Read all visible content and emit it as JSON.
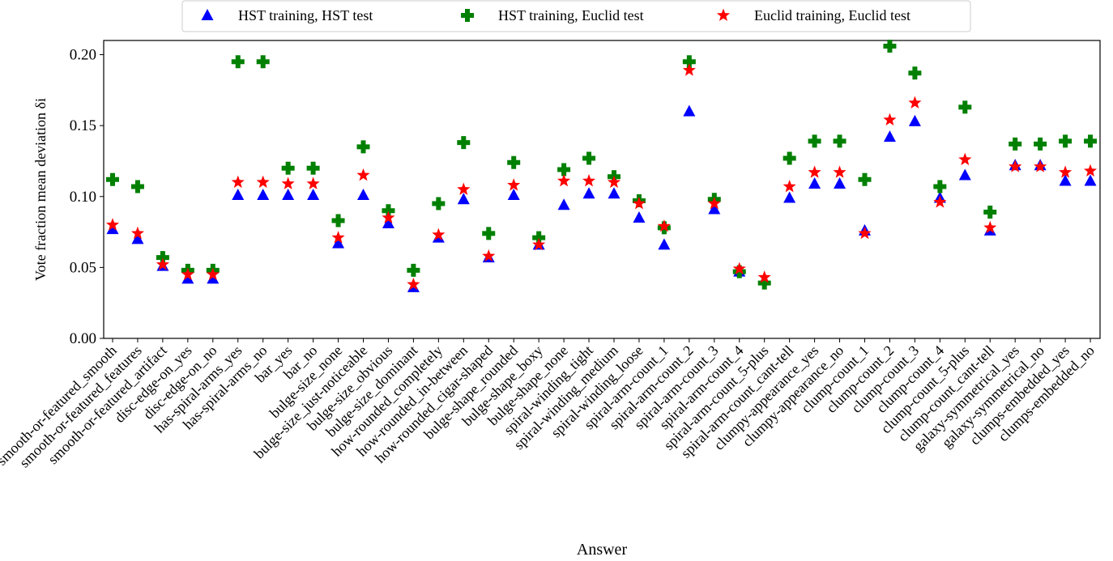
{
  "chart_data": {
    "type": "category-scatter",
    "xlabel": "Answer",
    "ylabel": "Vote fraction mean deviation δi",
    "categories": [
      "smooth-or-featured_smooth",
      "smooth-or-featured_features",
      "smooth-or-featured_artifact",
      "disc-edge-on_yes",
      "disc-edge-on_no",
      "has-spiral-arms_yes",
      "has-spiral-arms_no",
      "bar_yes",
      "bar_no",
      "bulge-size_none",
      "bulge-size_just-noticeable",
      "bulge-size_obvious",
      "bulge-size_dominant",
      "how-rounded_completely",
      "how-rounded_in-between",
      "how-rounded_cigar-shaped",
      "bulge-shape_rounded",
      "bulge-shape_boxy",
      "bulge-shape_none",
      "spiral-winding_tight",
      "spiral-winding_medium",
      "spiral-winding_loose",
      "spiral-arm-count_1",
      "spiral-arm-count_2",
      "spiral-arm-count_3",
      "spiral-arm-count_4",
      "spiral-arm-count_5-plus",
      "spiral-arm-count_cant-tell",
      "clumpy-appearance_yes",
      "clumpy-appearance_no",
      "clump-count_1",
      "clump-count_2",
      "clump-count_3",
      "clump-count_4",
      "clump-count_5-plus",
      "clump-count_cant-tell",
      "galaxy-symmetrical_yes",
      "galaxy-symmetrical_no",
      "clumps-embedded_yes",
      "clumps-embedded_no"
    ],
    "series": [
      {
        "name": "HST training, HST test",
        "color": "#0000ff",
        "marker": "triangle",
        "values": [
          0.077,
          0.07,
          0.051,
          0.042,
          0.042,
          0.101,
          0.101,
          0.101,
          0.101,
          0.067,
          0.101,
          0.081,
          0.036,
          0.071,
          0.098,
          0.057,
          0.101,
          0.066,
          0.094,
          0.102,
          0.102,
          0.085,
          0.066,
          0.16,
          0.091,
          0.047,
          0.041,
          0.099,
          0.109,
          0.109,
          0.076,
          0.142,
          0.153,
          0.099,
          0.115,
          0.076,
          0.122,
          0.122,
          0.111,
          0.111
        ]
      },
      {
        "name": "HST training, Euclid test",
        "color": "#008000",
        "marker": "plus",
        "values": [
          0.112,
          0.107,
          0.057,
          0.048,
          0.048,
          0.195,
          0.195,
          0.12,
          0.12,
          0.083,
          0.135,
          0.09,
          0.048,
          0.095,
          0.138,
          0.074,
          0.124,
          0.071,
          0.119,
          0.127,
          0.114,
          0.097,
          0.078,
          0.195,
          0.098,
          0.047,
          0.039,
          0.127,
          0.139,
          0.139,
          0.112,
          0.206,
          0.187,
          0.107,
          0.163,
          0.089,
          0.137,
          0.137,
          0.139,
          0.139
        ]
      },
      {
        "name": "Euclid training, Euclid test",
        "color": "#ff0000",
        "marker": "star",
        "values": [
          0.08,
          0.074,
          0.052,
          0.045,
          0.045,
          0.11,
          0.11,
          0.109,
          0.109,
          0.071,
          0.115,
          0.085,
          0.038,
          0.073,
          0.105,
          0.058,
          0.108,
          0.066,
          0.111,
          0.111,
          0.11,
          0.095,
          0.079,
          0.189,
          0.095,
          0.049,
          0.043,
          0.107,
          0.117,
          0.117,
          0.074,
          0.154,
          0.166,
          0.096,
          0.126,
          0.078,
          0.121,
          0.121,
          0.117,
          0.118
        ]
      }
    ],
    "ylim": [
      0,
      0.21
    ],
    "yticks": [
      {
        "value": 0,
        "label": "0.00"
      },
      {
        "value": 0.05,
        "label": "0.05"
      },
      {
        "value": 0.1,
        "label": "0.10"
      },
      {
        "value": 0.15,
        "label": "0.15"
      },
      {
        "value": 0.2,
        "label": "0.20"
      }
    ],
    "legend": "top-center"
  }
}
